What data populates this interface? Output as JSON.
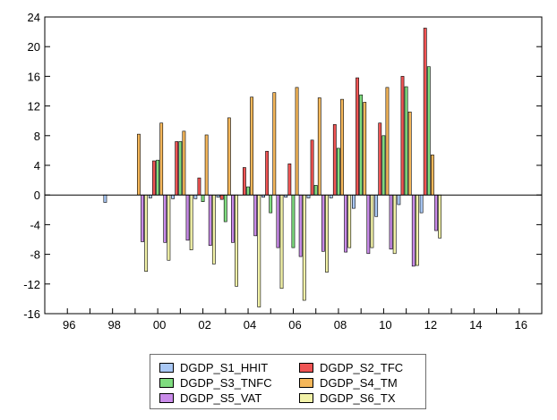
{
  "chart_data": {
    "type": "bar",
    "title": "",
    "xlabel": "",
    "ylabel": "",
    "ylim": [
      -16,
      24
    ],
    "xlim": [
      1995,
      2017
    ],
    "yticks": [
      24,
      20,
      16,
      12,
      8,
      4,
      0,
      -4,
      -8,
      -12,
      -16
    ],
    "xtick_labels": [
      "96",
      "98",
      "00",
      "02",
      "04",
      "06",
      "08",
      "10",
      "12",
      "14",
      "16"
    ],
    "xtick_years": [
      1996,
      1998,
      2000,
      2002,
      2004,
      2006,
      2008,
      2010,
      2012,
      2014,
      2016
    ],
    "years": [
      1998,
      1999,
      2000,
      2001,
      2002,
      2003,
      2004,
      2005,
      2006,
      2007,
      2008,
      2009,
      2010,
      2011,
      2012
    ],
    "grid": false,
    "legend_position": "bottom",
    "series": [
      {
        "name": "DGDP_S1_HHIT",
        "color": "#a9c8f5",
        "values": [
          -1.0,
          0,
          -0.4,
          -0.5,
          -0.5,
          -0.3,
          0,
          -0.3,
          -0.3,
          -0.4,
          -0.4,
          -1.8,
          -2.9,
          -1.3,
          -2.4
        ]
      },
      {
        "name": "DGDP_S2_TFC",
        "color": "#f05454",
        "values": [
          0,
          0,
          4.6,
          7.2,
          2.3,
          -0.6,
          3.7,
          5.9,
          4.2,
          7.4,
          9.5,
          15.8,
          9.7,
          16.0,
          22.5
        ]
      },
      {
        "name": "DGDP_S3_TNFC",
        "color": "#7fdc7f",
        "values": [
          0,
          0,
          4.7,
          7.2,
          -0.9,
          -3.6,
          1.1,
          -2.4,
          -7.1,
          1.3,
          6.3,
          13.5,
          8.0,
          14.6,
          17.3
        ]
      },
      {
        "name": "DGDP_S4_TM",
        "color": "#f5b75a",
        "values": [
          0,
          8.2,
          9.7,
          8.6,
          8.1,
          10.4,
          13.2,
          13.8,
          14.5,
          13.1,
          12.9,
          12.5,
          14.5,
          11.2,
          5.4
        ]
      },
      {
        "name": "DGDP_S5_VAT",
        "color": "#c98be9",
        "values": [
          0,
          -6.3,
          -6.4,
          -6.1,
          -6.8,
          -6.4,
          -5.5,
          -7.1,
          -8.3,
          -7.6,
          -7.7,
          -7.9,
          -7.3,
          -9.6,
          -4.8
        ]
      },
      {
        "name": "DGDP_S6_TX",
        "color": "#f2f2a8",
        "values": [
          0,
          -10.3,
          -8.8,
          -7.4,
          -9.3,
          -12.3,
          -15.1,
          -12.6,
          -14.2,
          -10.4,
          -7.1,
          -7.1,
          -7.9,
          -9.5,
          -5.8
        ]
      }
    ]
  }
}
